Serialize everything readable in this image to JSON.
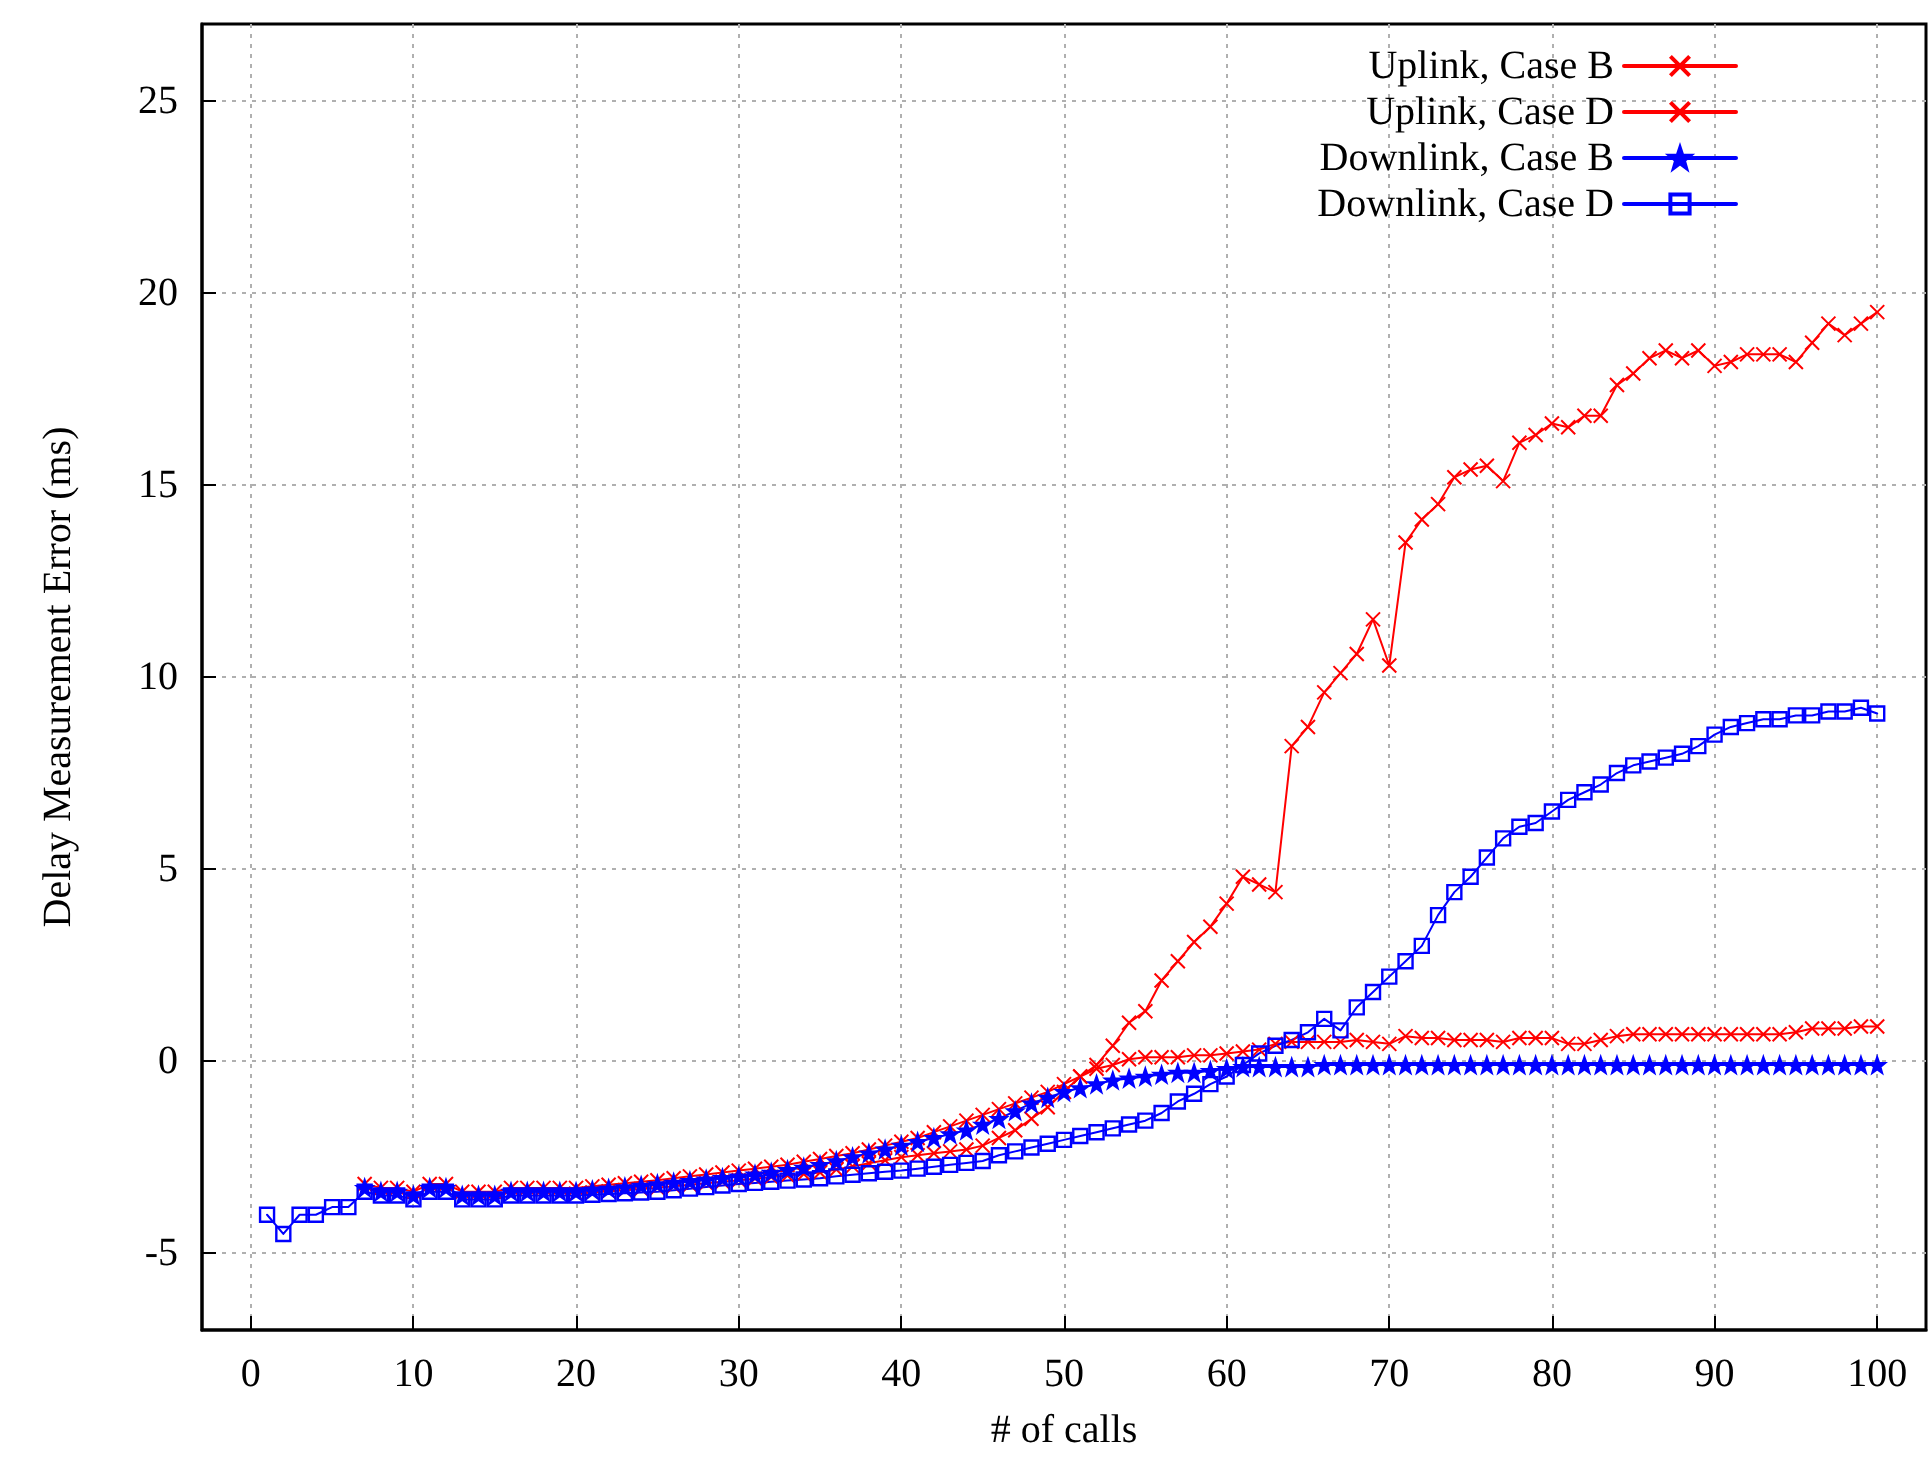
{
  "chart_data": {
    "type": "line",
    "xlabel": "# of calls",
    "ylabel": "Delay Measurement Error (ms)",
    "x": [
      1,
      2,
      3,
      4,
      5,
      6,
      7,
      8,
      9,
      10,
      11,
      12,
      13,
      14,
      15,
      16,
      17,
      18,
      19,
      20,
      21,
      22,
      23,
      24,
      25,
      26,
      27,
      28,
      29,
      30,
      31,
      32,
      33,
      34,
      35,
      36,
      37,
      38,
      39,
      40,
      41,
      42,
      43,
      44,
      45,
      46,
      47,
      48,
      49,
      50,
      51,
      52,
      53,
      54,
      55,
      56,
      57,
      58,
      59,
      60,
      61,
      62,
      63,
      64,
      65,
      66,
      67,
      68,
      69,
      70,
      71,
      72,
      73,
      74,
      75,
      76,
      77,
      78,
      79,
      80,
      81,
      82,
      83,
      84,
      85,
      86,
      87,
      88,
      89,
      90,
      91,
      92,
      93,
      94,
      95,
      96,
      97,
      98,
      99,
      100
    ],
    "series": [
      {
        "name": "Uplink, Case B",
        "color": "#ff0000",
        "marker": "cross",
        "values": [
          null,
          null,
          null,
          null,
          null,
          null,
          -3.2,
          -3.3,
          -3.3,
          -3.4,
          -3.2,
          -3.2,
          -3.4,
          -3.4,
          -3.4,
          -3.3,
          -3.3,
          -3.3,
          -3.3,
          -3.3,
          -3.26,
          -3.22,
          -3.18,
          -3.14,
          -3.1,
          -3.05,
          -3.0,
          -2.95,
          -2.9,
          -2.85,
          -2.8,
          -2.75,
          -2.7,
          -2.62,
          -2.55,
          -2.47,
          -2.4,
          -2.3,
          -2.2,
          -2.1,
          -2.0,
          -1.85,
          -1.7,
          -1.55,
          -1.4,
          -1.25,
          -1.1,
          -0.95,
          -0.8,
          -0.6,
          -0.4,
          -0.2,
          -0.1,
          0.05,
          0.1,
          0.1,
          0.1,
          0.15,
          0.15,
          0.2,
          0.25,
          0.3,
          0.45,
          0.5,
          0.5,
          0.5,
          0.5,
          0.55,
          0.5,
          0.45,
          0.65,
          0.6,
          0.6,
          0.55,
          0.55,
          0.55,
          0.5,
          0.6,
          0.6,
          0.6,
          0.45,
          0.45,
          0.55,
          0.65,
          0.7,
          0.7,
          0.7,
          0.7,
          0.7,
          0.7,
          0.7,
          0.7,
          0.7,
          0.7,
          0.75,
          0.85,
          0.85,
          0.85,
          0.9,
          0.9
        ]
      },
      {
        "name": "Uplink, Case D",
        "color": "#ff0000",
        "marker": "cross",
        "values": [
          null,
          null,
          null,
          null,
          null,
          null,
          null,
          null,
          null,
          null,
          null,
          null,
          null,
          null,
          null,
          null,
          null,
          null,
          null,
          -3.45,
          -3.42,
          -3.39,
          -3.36,
          -3.33,
          -3.3,
          -3.26,
          -3.22,
          -3.18,
          -3.14,
          -3.1,
          -3.06,
          -3.02,
          -2.98,
          -2.94,
          -2.9,
          -2.82,
          -2.74,
          -2.66,
          -2.58,
          -2.5,
          -2.45,
          -2.4,
          -2.35,
          -2.3,
          -2.2,
          -2.0,
          -1.8,
          -1.5,
          -1.2,
          -0.8,
          -0.4,
          -0.1,
          0.4,
          1.0,
          1.3,
          2.1,
          2.6,
          3.1,
          3.5,
          4.1,
          4.8,
          4.6,
          4.4,
          8.2,
          8.7,
          9.6,
          10.1,
          10.6,
          11.5,
          10.3,
          13.5,
          14.1,
          14.5,
          15.2,
          15.4,
          15.5,
          15.1,
          16.1,
          16.3,
          16.6,
          16.5,
          16.8,
          16.8,
          17.6,
          17.9,
          18.3,
          18.5,
          18.3,
          18.5,
          18.1,
          18.2,
          18.4,
          18.4,
          18.4,
          18.2,
          18.7,
          19.2,
          18.9,
          19.2,
          19.5
        ]
      },
      {
        "name": "Downlink, Case B",
        "color": "#0000ff",
        "marker": "star",
        "values": [
          null,
          null,
          null,
          null,
          null,
          null,
          -3.3,
          -3.4,
          -3.4,
          -3.5,
          -3.3,
          -3.3,
          -3.5,
          -3.5,
          -3.5,
          -3.4,
          -3.4,
          -3.4,
          -3.4,
          -3.4,
          -3.36,
          -3.32,
          -3.28,
          -3.24,
          -3.2,
          -3.16,
          -3.12,
          -3.08,
          -3.04,
          -3.0,
          -2.95,
          -2.9,
          -2.83,
          -2.77,
          -2.7,
          -2.6,
          -2.5,
          -2.4,
          -2.3,
          -2.2,
          -2.1,
          -2.0,
          -1.9,
          -1.8,
          -1.65,
          -1.5,
          -1.3,
          -1.1,
          -0.95,
          -0.8,
          -0.7,
          -0.6,
          -0.5,
          -0.45,
          -0.4,
          -0.35,
          -0.3,
          -0.3,
          -0.25,
          -0.2,
          -0.15,
          -0.15,
          -0.15,
          -0.15,
          -0.15,
          -0.1,
          -0.1,
          -0.1,
          -0.1,
          -0.1,
          -0.1,
          -0.1,
          -0.1,
          -0.1,
          -0.1,
          -0.1,
          -0.1,
          -0.1,
          -0.1,
          -0.1,
          -0.1,
          -0.1,
          -0.1,
          -0.1,
          -0.1,
          -0.1,
          -0.1,
          -0.1,
          -0.1,
          -0.1,
          -0.1,
          -0.1,
          -0.1,
          -0.1,
          -0.1,
          -0.1,
          -0.1,
          -0.1,
          -0.1,
          -0.1
        ]
      },
      {
        "name": "Downlink, Case D",
        "color": "#0000ff",
        "marker": "square",
        "values": [
          -4.0,
          -4.5,
          -4.0,
          -4.0,
          -3.8,
          -3.8,
          -3.4,
          -3.5,
          -3.5,
          -3.6,
          -3.4,
          -3.4,
          -3.6,
          -3.6,
          -3.6,
          -3.5,
          -3.5,
          -3.5,
          -3.5,
          -3.5,
          -3.48,
          -3.46,
          -3.44,
          -3.42,
          -3.4,
          -3.36,
          -3.32,
          -3.28,
          -3.24,
          -3.2,
          -3.17,
          -3.14,
          -3.11,
          -3.08,
          -3.05,
          -3.0,
          -2.96,
          -2.92,
          -2.88,
          -2.85,
          -2.8,
          -2.75,
          -2.7,
          -2.65,
          -2.6,
          -2.45,
          -2.35,
          -2.25,
          -2.15,
          -2.05,
          -1.95,
          -1.85,
          -1.75,
          -1.65,
          -1.55,
          -1.35,
          -1.05,
          -0.85,
          -0.6,
          -0.4,
          -0.1,
          0.2,
          0.4,
          0.55,
          0.75,
          1.1,
          0.8,
          1.4,
          1.8,
          2.2,
          2.6,
          3.0,
          3.8,
          4.4,
          4.8,
          5.3,
          5.8,
          6.1,
          6.2,
          6.5,
          6.8,
          7.0,
          7.2,
          7.5,
          7.7,
          7.8,
          7.9,
          8.0,
          8.2,
          8.5,
          8.7,
          8.8,
          8.9,
          8.9,
          9.0,
          9.0,
          9.1,
          9.1,
          9.2,
          9.05
        ]
      }
    ],
    "xlim": [
      -3,
      103
    ],
    "xticks": [
      0,
      10,
      20,
      30,
      40,
      50,
      60,
      70,
      80,
      90,
      100
    ],
    "ylim": [
      -7,
      27
    ],
    "yticks": [
      -5,
      0,
      5,
      10,
      15,
      20,
      25
    ],
    "grid": true,
    "legend": "top right",
    "line_style": "solid"
  }
}
